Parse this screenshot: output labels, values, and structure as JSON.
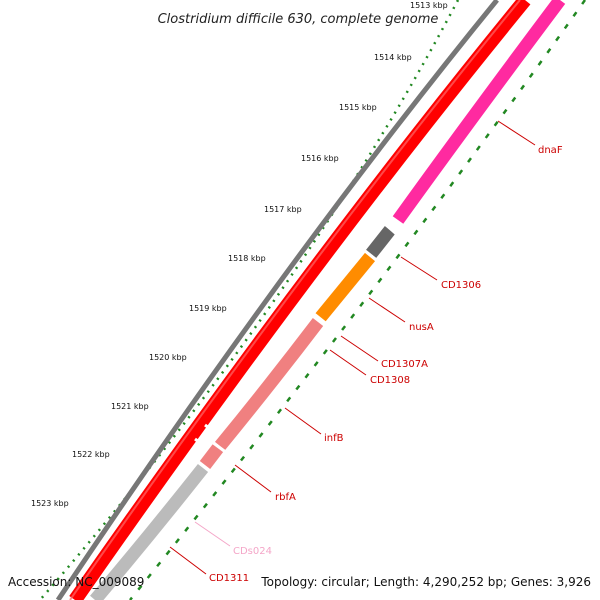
{
  "title": "Clostridium difficile 630, complete genome",
  "footer": {
    "accession": "Accession: NC_009089",
    "summary": "Topology: circular; Length: 4,290,252 bp; Genes: 3,926"
  },
  "ticks": [
    "1513 kbp",
    "1514 kbp",
    "1515 kbp",
    "1516 kbp",
    "1517 kbp",
    "1518 kbp",
    "1519 kbp",
    "1520 kbp",
    "1521 kbp",
    "1522 kbp",
    "1523 kbp"
  ],
  "genes": [
    {
      "name": "dnaF",
      "color": "#cc0000"
    },
    {
      "name": "CD1306",
      "color": "#cc0000"
    },
    {
      "name": "nusA",
      "color": "#cc0000"
    },
    {
      "name": "CD1307A",
      "color": "#cc0000"
    },
    {
      "name": "CD1308",
      "color": "#cc0000"
    },
    {
      "name": "infB",
      "color": "#cc0000"
    },
    {
      "name": "rbfA",
      "color": "#cc0000"
    },
    {
      "name": "CDs024",
      "color": "#f4a6c8"
    },
    {
      "name": "CD1311",
      "color": "#cc0000"
    }
  ],
  "colors": {
    "backbone": "#777777",
    "cds_track": "#ff0000",
    "dnaF_feature": "#ff2aa0",
    "CD1306_feature": "#666666",
    "nusA_feature": "#ff8c00",
    "infB_feature": "#f08080",
    "rbfA_feature": "#f08080",
    "rna_feature": "#bbbbbb",
    "tick_mark": "#228822"
  }
}
